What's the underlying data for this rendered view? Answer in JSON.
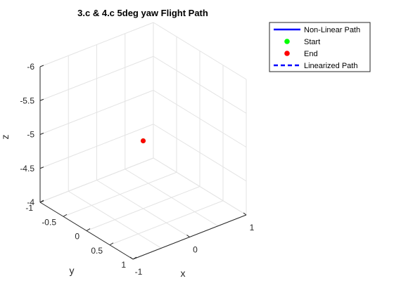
{
  "chart_data": {
    "type": "line",
    "title": "3.c & 4.c 5deg yaw Flight Path",
    "xlabel": "x",
    "ylabel": "y",
    "zlabel": "z",
    "x_ticks": [
      "-1",
      "0",
      "1"
    ],
    "y_ticks": [
      "-1",
      "-0.5",
      "0",
      "0.5",
      "1"
    ],
    "z_ticks": [
      "-6",
      "-5.5",
      "-5",
      "-4.5",
      "-4"
    ],
    "xlim": [
      -1,
      1
    ],
    "ylim": [
      -1,
      1
    ],
    "zlim": [
      -6,
      -4
    ],
    "z_direction": "reverse",
    "grid": true,
    "legend_position": "top-right outside",
    "series": [
      {
        "name": "Non-Linear Path",
        "style": "solid-line",
        "color": "#0000ff",
        "points": [
          [
            0,
            0,
            -5
          ]
        ]
      },
      {
        "name": "Start",
        "style": "marker",
        "color": "#00ff00",
        "points": [
          [
            0,
            0,
            -5
          ]
        ]
      },
      {
        "name": "End",
        "style": "marker",
        "color": "#ff0000",
        "points": [
          [
            0,
            0,
            -5
          ]
        ]
      },
      {
        "name": "Linearized Path",
        "style": "dashed-line",
        "color": "#0000ff",
        "points": [
          [
            0,
            0,
            -5
          ]
        ]
      }
    ]
  }
}
